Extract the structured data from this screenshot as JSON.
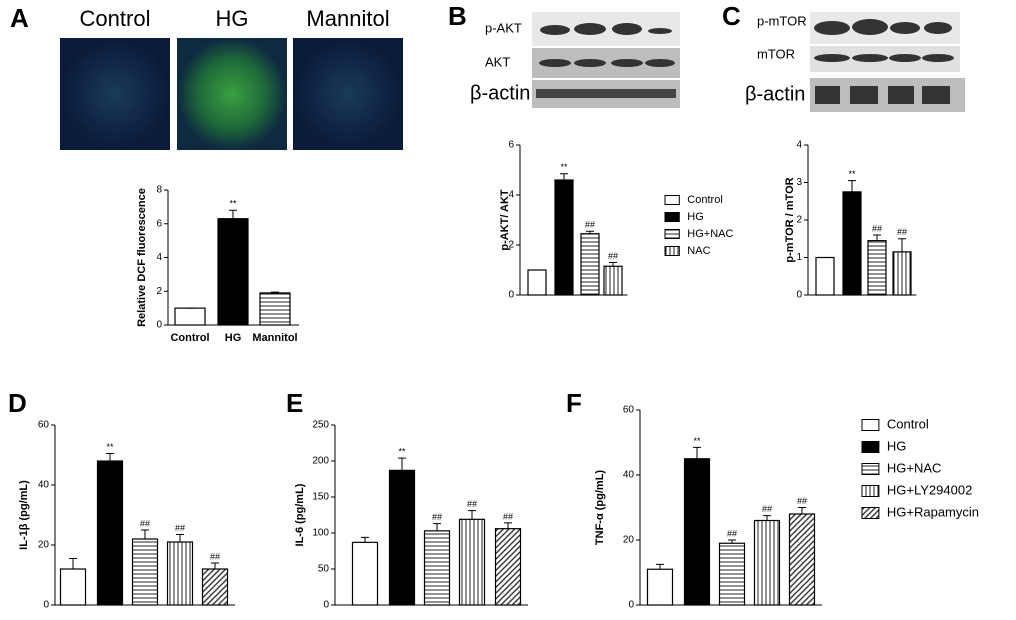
{
  "chart_data": [
    {
      "type": "bar",
      "panel": "A",
      "image_labels": [
        "Control",
        "HG",
        "Mannitol"
      ],
      "ylabel": "Relative DCF fluorescence",
      "categories": [
        "Control",
        "HG",
        "Mannitol"
      ],
      "values": [
        1,
        6.3,
        1.9
      ],
      "errors": [
        0,
        0.5,
        0.05
      ],
      "annotations": [
        null,
        "**",
        null
      ],
      "ylim": [
        0,
        8
      ],
      "yticks": [
        0,
        2,
        4,
        6,
        8
      ]
    },
    {
      "type": "bar",
      "panel": "B",
      "blot_labels": [
        "p-AKT",
        "AKT",
        "β-actin"
      ],
      "ylabel": "p-AKT/ AKT",
      "legend": [
        "Control",
        "HG",
        "HG+NAC",
        "NAC"
      ],
      "values": [
        1,
        4.6,
        2.45,
        1.15
      ],
      "errors": [
        0,
        0.25,
        0.1,
        0.15
      ],
      "annotations": [
        null,
        "**",
        "##",
        "##"
      ],
      "ylim": [
        0,
        6
      ],
      "yticks": [
        0,
        2,
        4,
        6
      ]
    },
    {
      "type": "bar",
      "panel": "C",
      "blot_labels": [
        "p-mTOR",
        "mTOR",
        "β-actin"
      ],
      "ylabel": "p-mTOR / mTOR",
      "values": [
        1,
        2.75,
        1.45,
        1.15
      ],
      "errors": [
        0,
        0.3,
        0.15,
        0.35
      ],
      "annotations": [
        null,
        "**",
        "##",
        "##"
      ],
      "ylim": [
        0,
        4
      ],
      "yticks": [
        0,
        1,
        2,
        3,
        4
      ]
    },
    {
      "type": "bar",
      "panel": "D",
      "ylabel": "IL-1β (pg/mL)",
      "values": [
        12,
        48,
        22,
        21,
        12
      ],
      "errors": [
        3.5,
        2.5,
        3,
        2.5,
        2
      ],
      "annotations": [
        null,
        "**",
        "##",
        "##",
        "##"
      ],
      "ylim": [
        0,
        60
      ],
      "yticks": [
        0,
        20,
        40,
        60
      ]
    },
    {
      "type": "bar",
      "panel": "E",
      "ylabel": "IL-6 (pg/mL)",
      "values": [
        87,
        187,
        103,
        119,
        106
      ],
      "errors": [
        7,
        17,
        10,
        12,
        8
      ],
      "annotations": [
        null,
        "**",
        "##",
        "##",
        "##"
      ],
      "ylim": [
        0,
        250
      ],
      "yticks": [
        0,
        50,
        100,
        150,
        200,
        250
      ]
    },
    {
      "type": "bar",
      "panel": "F",
      "ylabel": "TNF-α (pg/mL)",
      "legend": [
        "Control",
        "HG",
        "HG+NAC",
        "HG+LY294002",
        "HG+Rapamycin"
      ],
      "values": [
        11,
        45,
        19,
        26,
        28
      ],
      "errors": [
        1.5,
        3.5,
        1,
        1.5,
        2
      ],
      "annotations": [
        null,
        "**",
        "##",
        "##",
        "##"
      ],
      "ylim": [
        0,
        60
      ],
      "yticks": [
        0,
        20,
        40,
        60
      ]
    }
  ]
}
